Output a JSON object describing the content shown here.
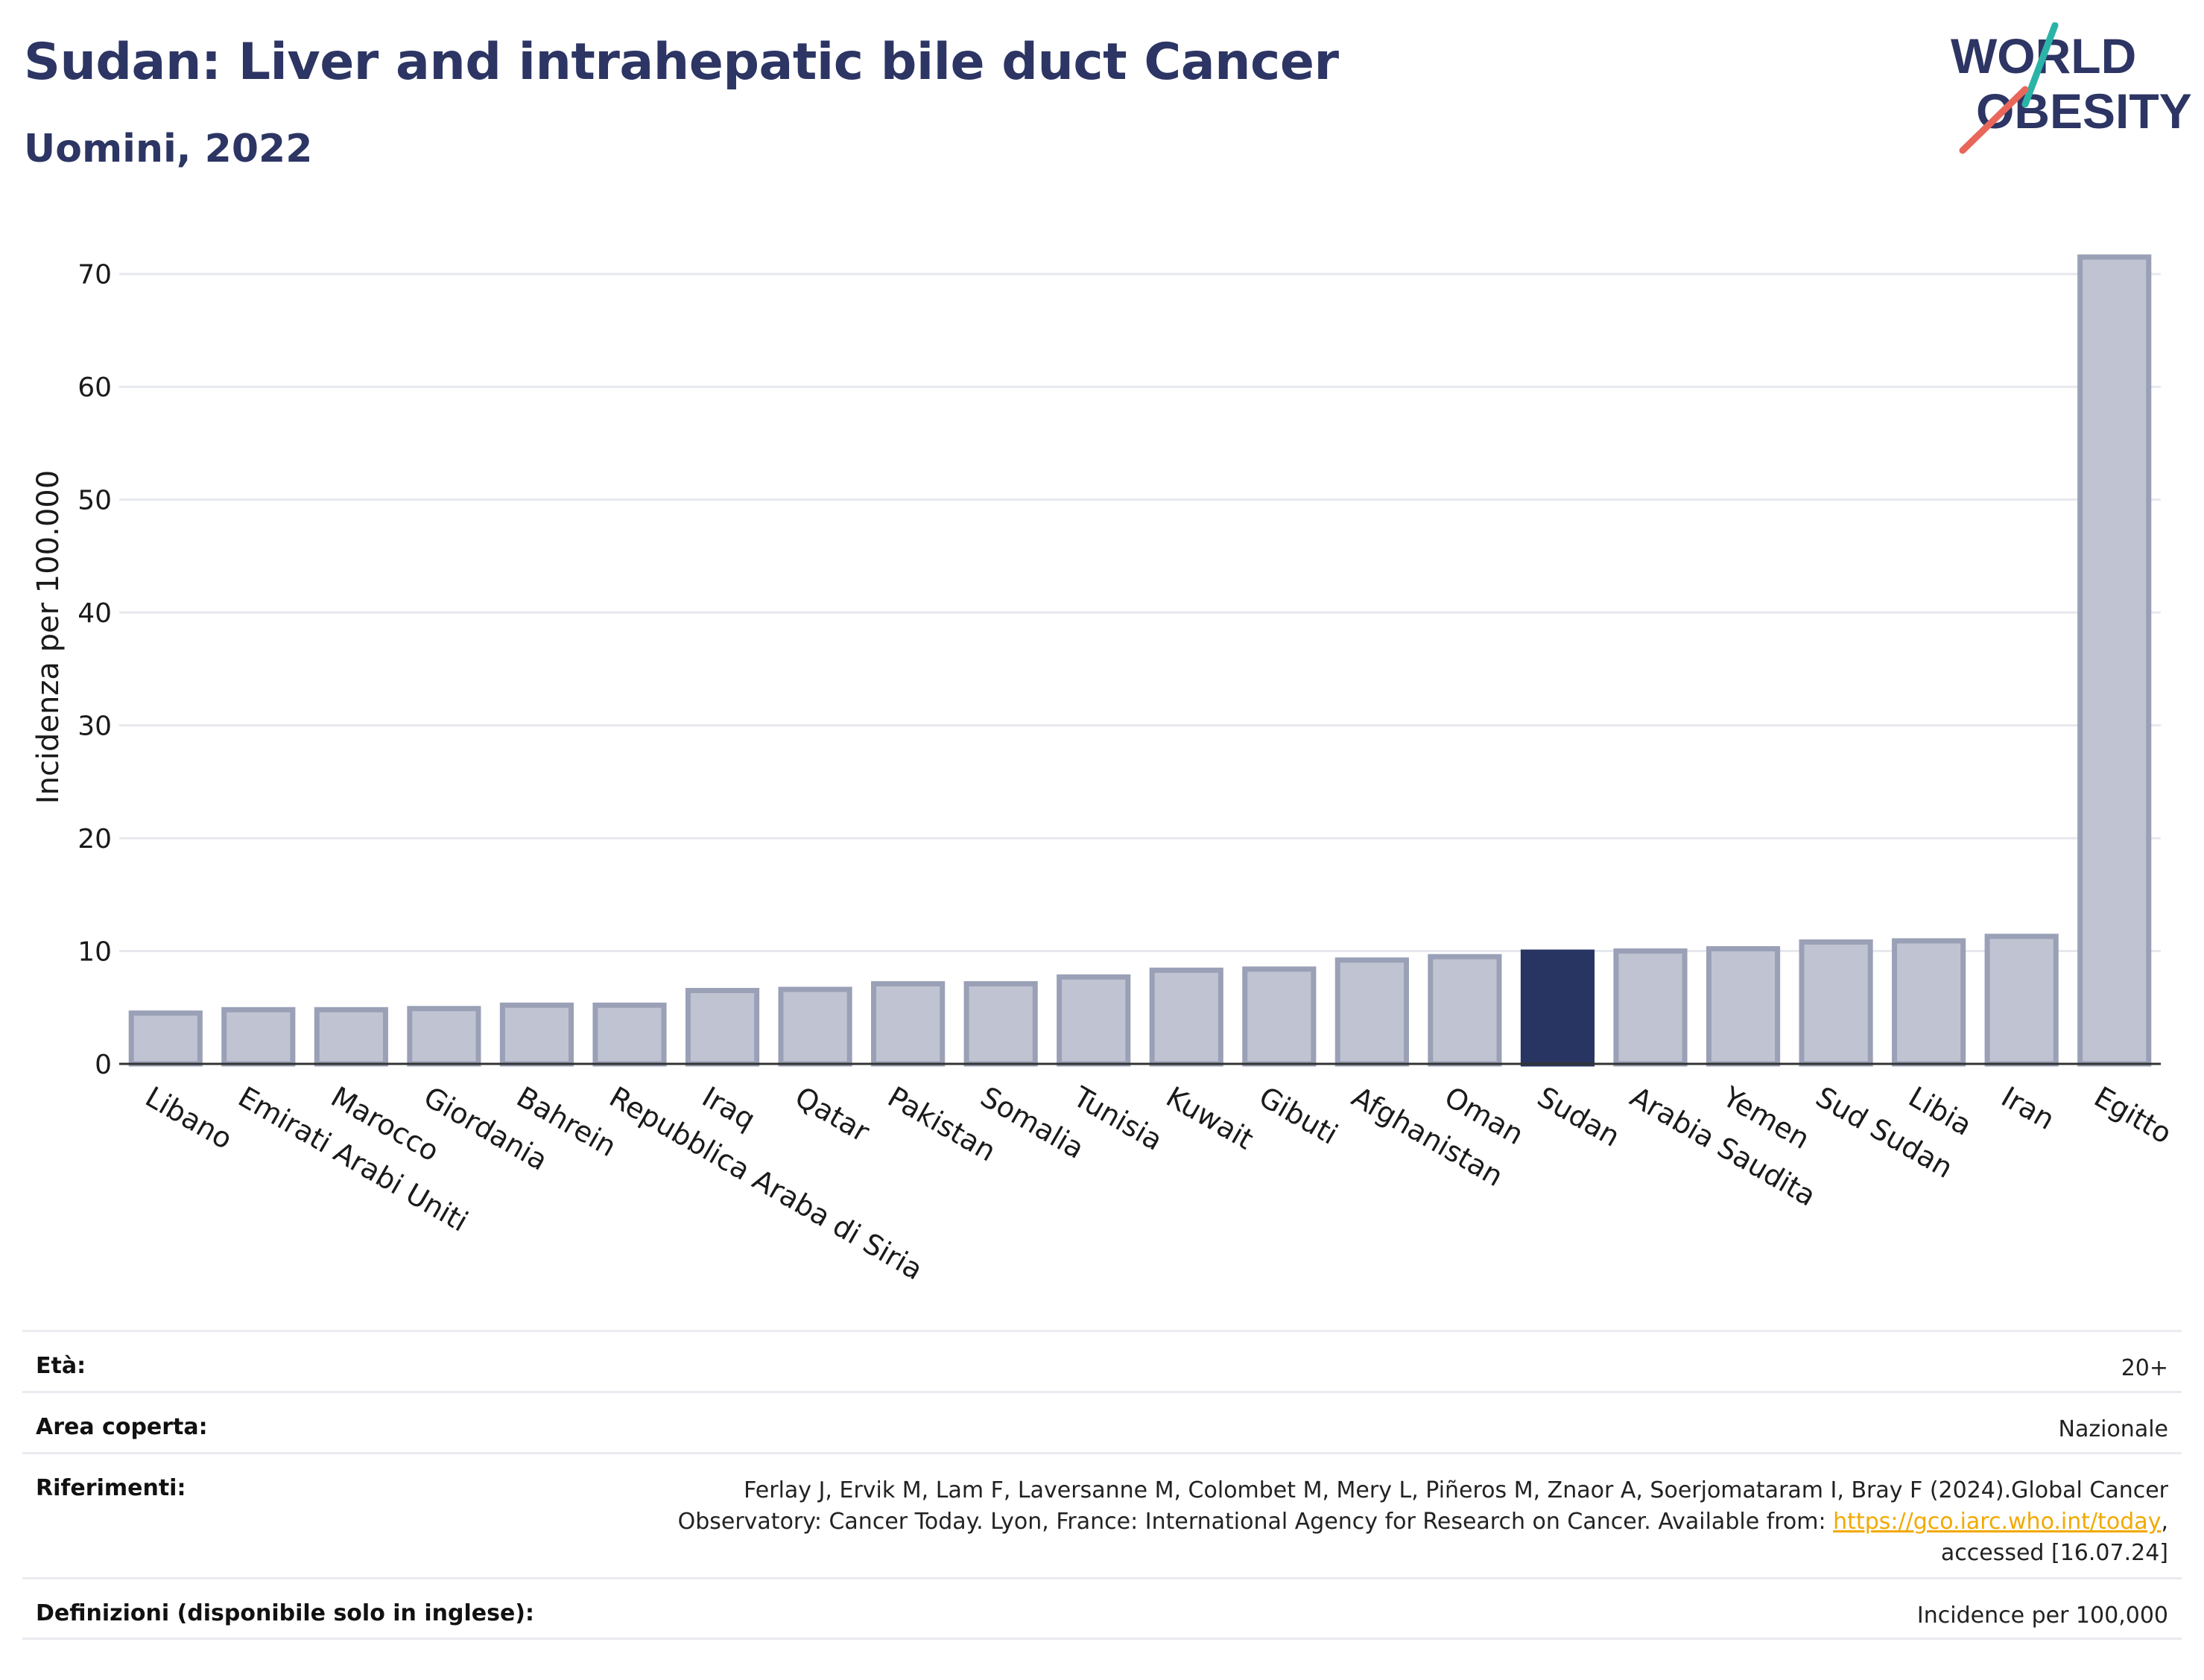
{
  "header": {
    "title": "Sudan: Liver and intrahepatic bile duct Cancer",
    "subtitle": "Uomini, 2022"
  },
  "logo": {
    "line1": "WORLD",
    "line2": "OBESITY",
    "text_color": "#2c3563",
    "accent_teal": "#2bb3a8",
    "accent_red": "#e8675a"
  },
  "colors": {
    "bar": "#c0c4d2",
    "bar_border": "#9aa0b6",
    "highlight": "#283562",
    "grid": "#e6e8ee"
  },
  "chart_data": {
    "type": "bar",
    "ylabel": "Incidenza per 100.000",
    "ylim": [
      0,
      75
    ],
    "yticks": [
      0,
      10,
      20,
      30,
      40,
      50,
      60,
      70
    ],
    "grid": true,
    "highlight": "Sudan",
    "categories": [
      "Libano",
      "Emirati Arabi Uniti",
      "Marocco",
      "Giordania",
      "Bahrein",
      "Repubblica Araba di Siria",
      "Iraq",
      "Qatar",
      "Pakistan",
      "Somalia",
      "Tunisia",
      "Kuwait",
      "Gibuti",
      "Afghanistan",
      "Oman",
      "Sudan",
      "Arabia Saudita",
      "Yemen",
      "Sud Sudan",
      "Libia",
      "Iran",
      "Egitto"
    ],
    "values": [
      4.5,
      4.8,
      4.8,
      4.9,
      5.2,
      5.2,
      6.5,
      6.6,
      7.1,
      7.1,
      7.7,
      8.3,
      8.4,
      9.2,
      9.5,
      9.9,
      10.0,
      10.2,
      10.8,
      10.9,
      11.3,
      71.5
    ]
  },
  "info": {
    "age_label": "Età:",
    "age_value": "20+",
    "area_label": "Area coperta:",
    "area_value": "Nazionale",
    "ref_label": "Riferimenti:",
    "ref_line1": "Ferlay J, Ervik M, Lam F, Laversanne M, Colombet M, Mery L, Piñeros M, Znaor A, Soerjomataram I, Bray F (2024).Global Cancer",
    "ref_line2": "Observatory: Cancer Today. Lyon, France: International Agency for Research on Cancer. Available from: ",
    "ref_link": "https://gco.iarc.who.int/today",
    "ref_line2_end": ",",
    "ref_line3": "accessed [16.07.24]",
    "def_label": "Definizioni (disponibile solo in inglese):",
    "def_value": "Incidence per 100,000"
  }
}
